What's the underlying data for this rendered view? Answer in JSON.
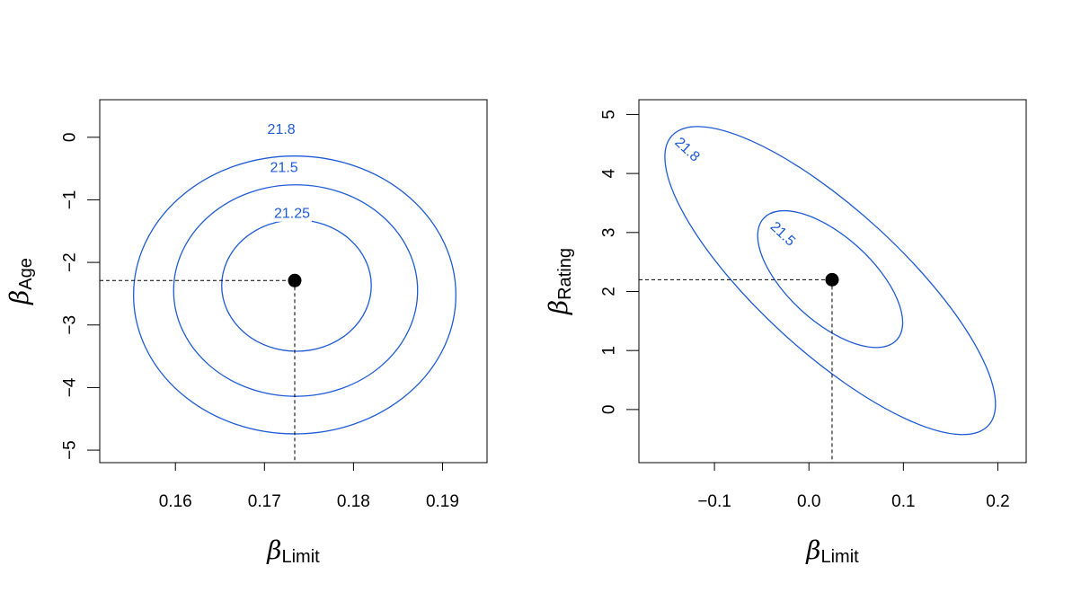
{
  "chart_data": [
    {
      "type": "contour",
      "xlabel": {
        "symbol": "β",
        "subscript": "Limit"
      },
      "ylabel": {
        "symbol": "β",
        "subscript": "Age"
      },
      "xlim": [
        0.1515,
        0.195
      ],
      "ylim": [
        -5.2,
        0.6
      ],
      "xticks": [
        {
          "value": 0.16,
          "label": "0.16"
        },
        {
          "value": 0.17,
          "label": "0.17"
        },
        {
          "value": 0.18,
          "label": "0.18"
        },
        {
          "value": 0.19,
          "label": "0.19"
        }
      ],
      "yticks": [
        {
          "value": 0,
          "label": "0"
        },
        {
          "value": -1,
          "label": "−1"
        },
        {
          "value": -2,
          "label": "−2"
        },
        {
          "value": -3,
          "label": "−3"
        },
        {
          "value": -4,
          "label": "−4"
        },
        {
          "value": -5,
          "label": "−5"
        }
      ],
      "minimum": {
        "x": 0.1734,
        "y": -2.29
      },
      "contours": [
        {
          "level_label": "21.25",
          "center": [
            0.1736,
            -2.37
          ],
          "rx": 0.0084,
          "ry": 1.05,
          "label_at": [
            0.1731,
            -1.22
          ]
        },
        {
          "level_label": "21.5",
          "center": [
            0.1735,
            -2.45
          ],
          "rx": 0.0137,
          "ry": 1.69,
          "label_at": [
            0.1722,
            -0.49
          ]
        },
        {
          "level_label": "21.8",
          "center": [
            0.1734,
            -2.52
          ],
          "rx": 0.0181,
          "ry": 2.22,
          "label_at": [
            0.1719,
            0.12
          ]
        }
      ],
      "grid": false
    },
    {
      "type": "contour",
      "xlabel": {
        "symbol": "β",
        "subscript": "Limit"
      },
      "ylabel": {
        "symbol": "β",
        "subscript": "Rating"
      },
      "xlim": [
        -0.18,
        0.23
      ],
      "ylim": [
        -0.9,
        5.25
      ],
      "xticks": [
        {
          "value": -0.1,
          "label": "−0.1"
        },
        {
          "value": 0.0,
          "label": "0.0"
        },
        {
          "value": 0.1,
          "label": "0.1"
        },
        {
          "value": 0.2,
          "label": "0.2"
        }
      ],
      "yticks": [
        {
          "value": 0,
          "label": "0"
        },
        {
          "value": 1,
          "label": "1"
        },
        {
          "value": 2,
          "label": "2"
        },
        {
          "value": 3,
          "label": "3"
        },
        {
          "value": 4,
          "label": "4"
        },
        {
          "value": 5,
          "label": "5"
        }
      ],
      "minimum": {
        "x": 0.0245,
        "y": 2.2
      },
      "contours": [
        {
          "level_label": "21.5",
          "end1": [
            -0.048,
            3.24
          ],
          "end2": [
            0.093,
            1.18
          ],
          "half_width": 0.045,
          "label_at": [
            -0.028,
            2.97
          ],
          "label_angle": 43
        },
        {
          "level_label": "21.8",
          "end1": [
            -0.145,
            4.64
          ],
          "end2": [
            0.19,
            -0.27
          ],
          "half_width": 0.075,
          "label_at": [
            -0.129,
            4.4
          ],
          "label_angle": 43
        }
      ],
      "grid": false
    }
  ]
}
